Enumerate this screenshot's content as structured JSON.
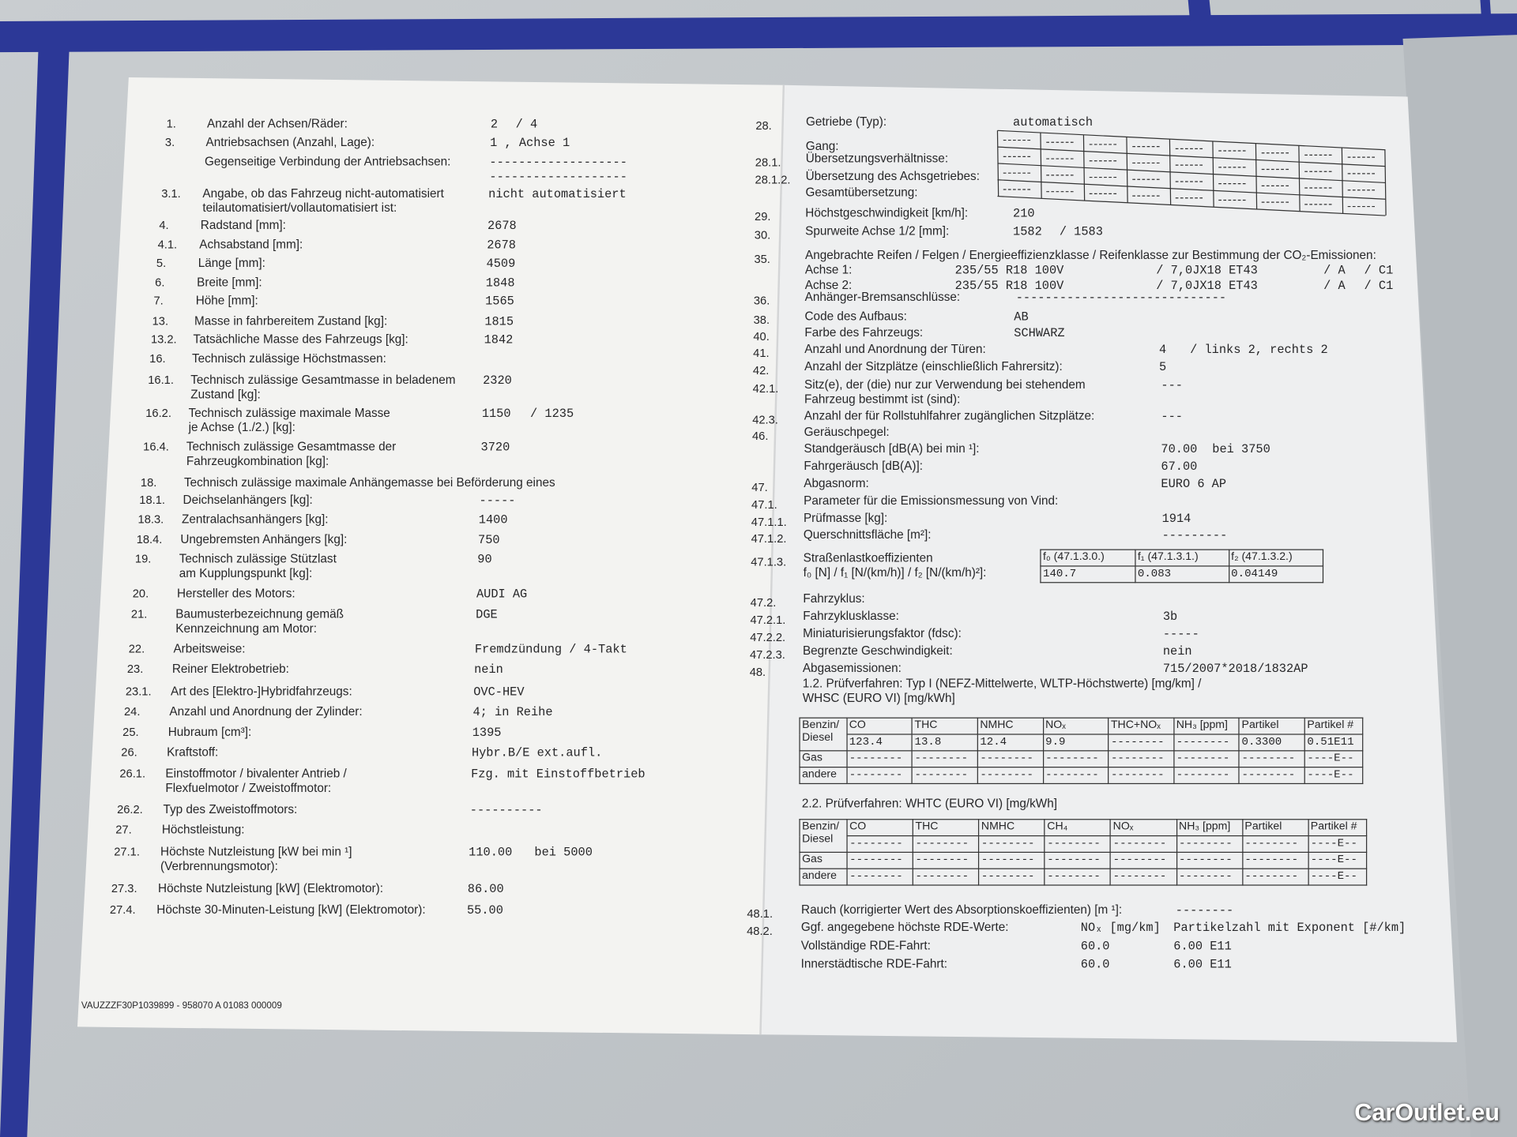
{
  "left": {
    "rows": [
      {
        "num": "1.",
        "label": "Anzahl der Achsen/Räder:",
        "values": [
          "2",
          "/ 4"
        ]
      },
      {
        "num": "3.",
        "label": "Antriebsachsen (Anzahl, Lage):",
        "values": [
          "1 , Achse 1"
        ]
      },
      {
        "label": "Gegenseitige Verbindung der Antriebsachsen:",
        "values": [
          "-------------------\n-------------------"
        ]
      },
      {
        "num": "3.1.",
        "label": "Angabe, ob das Fahrzeug nicht-automatisiert\nteilautomatisiert/vollautomatisiert ist:",
        "values": [
          "nicht automatisiert"
        ]
      },
      {
        "num": "4.",
        "label": "Radstand [mm]:",
        "values": [
          "2678"
        ]
      },
      {
        "num": "4.1.",
        "label": "Achsabstand [mm]:",
        "values": [
          "2678"
        ]
      },
      {
        "num": "5.",
        "label": "Länge [mm]:",
        "values": [
          "4509"
        ]
      },
      {
        "num": "6.",
        "label": "Breite [mm]:",
        "values": [
          "1848"
        ]
      },
      {
        "num": "7.",
        "label": "Höhe [mm]:",
        "values": [
          "1565"
        ]
      },
      {
        "num": "13.",
        "label": "Masse in fahrbereitem Zustand [kg]:",
        "values": [
          "1815"
        ]
      },
      {
        "num": "13.2.",
        "label": "Tatsächliche Masse des Fahrzeugs [kg]:",
        "values": [
          "1842"
        ]
      },
      {
        "num": "16.",
        "label": "Technisch zulässige Höchstmassen:"
      },
      {
        "num": "16.1.",
        "label": "Technisch zulässige Gesamtmasse in beladenem\nZustand [kg]:",
        "values": [
          "2320"
        ]
      },
      {
        "num": "16.2.",
        "label": "Technisch zulässige maximale Masse\nje Achse (1./2.) [kg]:",
        "values": [
          "1150",
          "/ 1235"
        ]
      },
      {
        "num": "16.4.",
        "label": "Technisch zulässige Gesamtmasse der\nFahrzeugkombination [kg]:",
        "values": [
          "3720"
        ]
      },
      {
        "num": "18.",
        "label": "Technisch zulässige maximale Anhängemasse bei Beförderung eines"
      },
      {
        "num": "18.1.",
        "label": "Deichselanhängers [kg]:",
        "values": [
          "-----"
        ]
      },
      {
        "num": "18.3.",
        "label": "Zentralachsanhängers [kg]:",
        "values": [
          "1400"
        ]
      },
      {
        "num": "18.4.",
        "label": "Ungebremsten Anhängers [kg]:",
        "values": [
          "750"
        ]
      },
      {
        "num": "19.",
        "label": "Technisch zulässige Stützlast\nam Kupplungspunkt [kg]:",
        "values": [
          "90"
        ]
      },
      {
        "num": "20.",
        "label": "Hersteller des Motors:",
        "values": [
          "AUDI AG"
        ]
      },
      {
        "num": "21.",
        "label": "Baumusterbezeichnung gemäß\nKennzeichnung am Motor:",
        "values": [
          "DGE"
        ]
      },
      {
        "num": "22.",
        "label": "Arbeitsweise:",
        "values": [
          "Fremdzündung / 4-Takt"
        ]
      },
      {
        "num": "23.",
        "label": "Reiner Elektrobetrieb:",
        "values": [
          "nein"
        ]
      },
      {
        "num": "23.1.",
        "label": "Art des [Elektro-]Hybridfahrzeugs:",
        "values": [
          "OVC-HEV"
        ]
      },
      {
        "num": "24.",
        "label": "Anzahl und Anordnung der Zylinder:",
        "values": [
          "4; in Reihe"
        ]
      },
      {
        "num": "25.",
        "label": "Hubraum [cm³]:",
        "values": [
          "1395"
        ]
      },
      {
        "num": "26.",
        "label": "Kraftstoff:",
        "values": [
          "Hybr.B/E ext.aufl."
        ]
      },
      {
        "num": "26.1.",
        "label": "Einstoffmotor / bivalenter Antrieb /\nFlexfuelmotor / Zweistoffmotor:",
        "values": [
          "Fzg. mit Einstoffbetrieb"
        ]
      },
      {
        "num": "26.2.",
        "label": "Typ des Zweistoffmotors:",
        "values": [
          "----------"
        ]
      },
      {
        "num": "27.",
        "label": "Höchstleistung:"
      },
      {
        "num": "27.1.",
        "label": "Höchste Nutzleistung [kW bei min ¹]\n(Verbrennungsmotor):",
        "values": [
          "110.00",
          "bei 5000"
        ]
      },
      {
        "num": "27.3.",
        "label": "Höchste Nutzleistung [kW] (Elektromotor):",
        "values": [
          "86.00"
        ]
      },
      {
        "num": "27.4.",
        "label": "Höchste 30-Minuten-Leistung [kW] (Elektromotor):",
        "values": [
          "55.00"
        ]
      }
    ],
    "footer": "VAUZZZF30P1039899 - 958070 A 01083    000009"
  },
  "right": {
    "rows": [
      {
        "num": "28.",
        "label": "Getriebe (Typ):",
        "values": [
          "automatisch"
        ]
      },
      {
        "label": "Gang:"
      },
      {
        "num": "28.1.",
        "label": "Übersetzungsverhältnisse:"
      },
      {
        "num": "28.1.2.",
        "label": "Übersetzung des Achsgetriebes:"
      },
      {
        "label": "Gesamtübersetzung:"
      },
      {
        "num": "29.",
        "label": "Höchstgeschwindigkeit [km/h]:",
        "values": [
          "210"
        ]
      },
      {
        "num": "30.",
        "label": "Spurweite Achse 1/2 [mm]:",
        "values": [
          "1582",
          "/ 1583"
        ]
      },
      {
        "num": "35.",
        "label": "Angebrachte Reifen / Felgen / Energieeffizienzklasse / Reifenklasse zur Bestimmung der CO₂-Emissionen:"
      },
      {
        "label": "Achse 1:",
        "values": [
          "235/55 R18 100V",
          "/ 7,0JX18 ET43",
          "/ A",
          "/ C1"
        ]
      },
      {
        "label": "Achse 2:",
        "values": [
          "235/55 R18 100V",
          "/ 7,0JX18 ET43",
          "/ A",
          "/ C1"
        ]
      },
      {
        "num": "36.",
        "label": "Anhänger-Bremsanschlüsse:",
        "values": [
          "-----------------------------"
        ]
      },
      {
        "num": "38.",
        "label": "Code des Aufbaus:",
        "values": [
          "AB"
        ]
      },
      {
        "num": "40.",
        "label": "Farbe des Fahrzeugs:",
        "values": [
          "SCHWARZ"
        ]
      },
      {
        "num": "41.",
        "label": "Anzahl und Anordnung der Türen:",
        "values": [
          "4",
          "/ links 2, rechts 2"
        ]
      },
      {
        "num": "42.",
        "label": "Anzahl der Sitzplätze (einschließlich Fahrersitz):",
        "values": [
          "5"
        ]
      },
      {
        "num": "42.1.",
        "label": "Sitz(e), der (die) nur zur Verwendung bei stehendem\nFahrzeug bestimmt ist (sind):",
        "values": [
          "---"
        ]
      },
      {
        "num": "42.3.",
        "label": "Anzahl der für Rollstuhlfahrer zugänglichen Sitzplätze:",
        "values": [
          "---"
        ]
      },
      {
        "num": "46.",
        "label": "Geräuschpegel:"
      },
      {
        "label": "Standgeräusch [dB(A) bei min ¹]:",
        "values": [
          "70.00",
          "bei 3750"
        ]
      },
      {
        "label": "Fahrgeräusch [dB(A)]:",
        "values": [
          "67.00"
        ]
      },
      {
        "num": "47.",
        "label": "Abgasnorm:",
        "values": [
          "EURO 6 AP"
        ]
      },
      {
        "num": "47.1.",
        "label": "Parameter für die Emissionsmessung von Vind:"
      },
      {
        "num": "47.1.1.",
        "label": "Prüfmasse [kg]:",
        "values": [
          "1914"
        ]
      },
      {
        "num": "47.1.2.",
        "label": "Querschnittsfläche [m²]:",
        "values": [
          "---------"
        ]
      },
      {
        "num": "47.1.3.",
        "label": "Straßenlastkoeffizienten\nf₀ [N] / f₁ [N/(km/h)] / f₂ [N/(km/h)²]:"
      },
      {
        "num": "47.2.",
        "label": "Fahrzyklus:"
      },
      {
        "num": "47.2.1.",
        "label": "Fahrzyklusklasse:",
        "values": [
          "3b"
        ]
      },
      {
        "num": "47.2.2.",
        "label": "Miniaturisierungsfaktor (fdsc):",
        "values": [
          "-----"
        ]
      },
      {
        "num": "47.2.3.",
        "label": "Begrenzte Geschwindigkeit:",
        "values": [
          "nein"
        ]
      },
      {
        "num": "48.",
        "label": "Abgasemissionen:",
        "values": [
          "715/2007*2018/1832AP"
        ]
      },
      {
        "label": "1.2. Prüfverfahren: Typ I (NEFZ-Mittelwerte, WLTP-Höchstwerte) [mg/km] /\n                  WHSC (EURO VI) [mg/kWh]"
      },
      {
        "label": "2.2. Prüfverfahren: WHTC (EURO VI) [mg/kWh]"
      },
      {
        "num": "48.1.",
        "label": "Rauch (korrigierter Wert des Absorptionskoeffizienten) [m ¹]:",
        "values": [
          "--------"
        ]
      },
      {
        "num": "48.2.",
        "label": "Ggf. angegebene höchste RDE-Werte:",
        "values": [
          "NOₓ [mg/km]",
          "Partikelzahl mit Exponent [#/km]"
        ]
      },
      {
        "label": "Vollständige RDE-Fahrt:",
        "values": [
          "60.0",
          "6.00 E11"
        ]
      },
      {
        "label": "Innerstädtische RDE-Fahrt:",
        "values": [
          "60.0",
          "6.00 E11"
        ]
      }
    ],
    "road_load": {
      "headers": [
        "f₀ (47.1.3.0.)",
        "f₁ (47.1.3.1.)",
        "f₂ (47.1.3.2.)"
      ],
      "values": [
        "140.7",
        "0.083",
        "0.04149"
      ]
    },
    "emissions_type1": {
      "headers": [
        "CO",
        "THC",
        "NMHC",
        "NOₓ",
        "THC+NOₓ",
        "NH₃ [ppm]",
        "Partikel",
        "Partikel #"
      ],
      "rows": [
        {
          "label": "Benzin/\nDiesel",
          "cells": [
            "123.4",
            "13.8",
            "12.4",
            "9.9",
            "--------",
            "--------",
            "0.3300",
            "0.51E11"
          ]
        },
        {
          "label": "Gas",
          "cells": [
            "--------",
            "--------",
            "--------",
            "--------",
            "--------",
            "--------",
            "--------",
            "----E--"
          ]
        },
        {
          "label": "andere",
          "cells": [
            "--------",
            "--------",
            "--------",
            "--------",
            "--------",
            "--------",
            "--------",
            "----E--"
          ]
        }
      ]
    },
    "emissions_whtc": {
      "headers": [
        "CO",
        "THC",
        "NMHC",
        "CH₄",
        "NOₓ",
        "NH₃ [ppm]",
        "Partikel",
        "Partikel #"
      ],
      "rows": [
        {
          "label": "Benzin/\nDiesel",
          "cells": [
            "--------",
            "--------",
            "--------",
            "--------",
            "--------",
            "--------",
            "--------",
            "----E--"
          ]
        },
        {
          "label": "Gas",
          "cells": [
            "--------",
            "--------",
            "--------",
            "--------",
            "--------",
            "--------",
            "--------",
            "----E--"
          ]
        },
        {
          "label": "andere",
          "cells": [
            "--------",
            "--------",
            "--------",
            "--------",
            "--------",
            "--------",
            "--------",
            "----E--"
          ]
        }
      ]
    }
  },
  "watermark": "CarOutlet.eu"
}
